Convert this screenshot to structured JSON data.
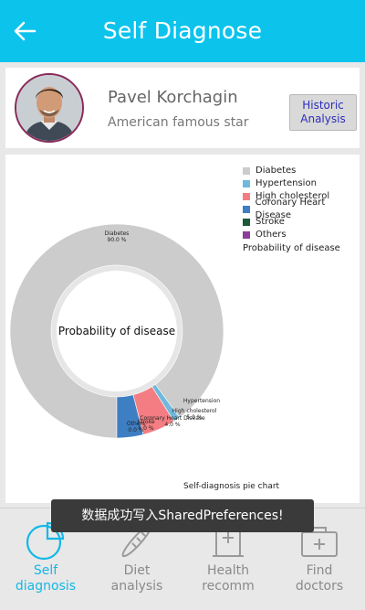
{
  "header": {
    "title": "Self Diagnose",
    "back_icon": "arrow-left-icon"
  },
  "profile": {
    "name": "Pavel Korchagin",
    "subtitle": "American famous star",
    "historic_button": "Historic Analysis",
    "avatar": "avatar-portrait"
  },
  "chart_data": {
    "type": "pie",
    "variant": "donut",
    "center_text": "Probability of disease",
    "description": "Self-diagnosis pie chart",
    "legend_title": "Probability of disease",
    "legend_position": "top-right",
    "slices": [
      {
        "name": "Diabetes",
        "value": 90.0,
        "label": "Diabetes\n90.0 %",
        "color": "#cccccc"
      },
      {
        "name": "Hypertension",
        "value": 1.0,
        "label": "Hypertension",
        "color": "#6fb9dd"
      },
      {
        "name": "High cholesterol",
        "value": 5.0,
        "label": "High cholesterol\n5.0 %",
        "color": "#f37d83"
      },
      {
        "name": "Coronary Heart Disease",
        "value": 4.0,
        "label": "Coronary Heart Disease\n4.0 %",
        "color": "#3e7ec3"
      },
      {
        "name": "Stroke",
        "value": 0.0,
        "label": "Stroke\n0.0 %",
        "color": "#1a5a37"
      },
      {
        "name": "Others",
        "value": 0.0,
        "label": "Others\n0.0 %",
        "color": "#8c3e9a"
      }
    ]
  },
  "toast": "数据成功写入SharedPreferences!",
  "bottom_nav": [
    {
      "label": "Self\ndiagnosis",
      "icon": "pie-chart-icon",
      "active": true
    },
    {
      "label": "Diet\nanalysis",
      "icon": "baguette-icon",
      "active": false
    },
    {
      "label": "Health\nrecomm",
      "icon": "health-book-icon",
      "active": false
    },
    {
      "label": "Find\ndoctors",
      "icon": "medical-kit-icon",
      "active": false
    }
  ]
}
